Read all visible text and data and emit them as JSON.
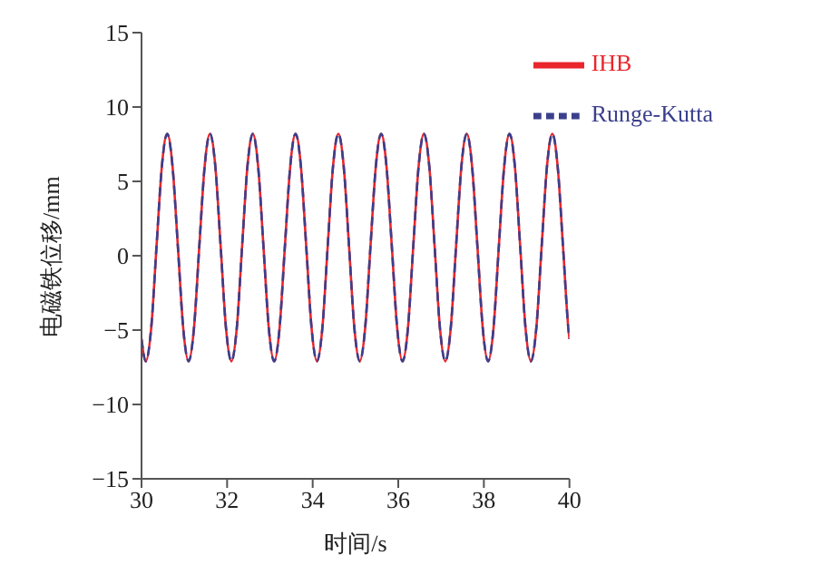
{
  "chart_data": {
    "type": "line",
    "xlabel": "时间/s",
    "ylabel": "电磁铁位移/mm",
    "x": [
      30,
      30.1,
      30.225,
      30.35,
      30.475,
      30.6,
      30.725,
      30.85,
      30.975,
      31.1,
      31.225,
      31.35,
      31.475,
      31.6,
      31.725,
      31.85,
      31.975,
      32.1,
      32.225,
      32.35,
      32.475,
      32.6,
      32.725,
      32.85,
      32.975,
      33.1,
      33.225,
      33.35,
      33.475,
      33.6,
      33.725,
      33.85,
      33.975,
      34.1,
      34.225,
      34.35,
      34.475,
      34.6,
      34.725,
      34.85,
      34.975,
      35.1,
      35.225,
      35.35,
      35.475,
      35.6,
      35.725,
      35.85,
      35.975,
      36.1,
      36.225,
      36.35,
      36.475,
      36.6,
      36.725,
      36.85,
      36.975,
      37.1,
      37.225,
      37.35,
      37.475,
      37.6,
      37.725,
      37.85,
      37.975,
      38.1,
      38.225,
      38.35,
      38.475,
      38.6,
      38.725,
      38.85,
      38.975,
      39.1,
      39.225,
      39.35,
      39.475,
      39.6,
      39.725,
      39.85,
      39.975,
      40
    ],
    "series": [
      {
        "name": "IHB",
        "color": "#e8262c",
        "line_style": "solid",
        "values": [
          -5.6,
          -7.1,
          -4.9,
          0.6,
          6.0,
          8.2,
          6.0,
          0.6,
          -4.9,
          -7.1,
          -4.9,
          0.6,
          6.0,
          8.2,
          6.0,
          0.6,
          -4.9,
          -7.1,
          -4.9,
          0.6,
          6.0,
          8.2,
          6.0,
          0.6,
          -4.9,
          -7.1,
          -4.9,
          0.6,
          6.0,
          8.2,
          6.0,
          0.6,
          -4.9,
          -7.1,
          -4.9,
          0.6,
          6.0,
          8.2,
          6.0,
          0.6,
          -4.9,
          -7.1,
          -4.9,
          0.6,
          6.0,
          8.2,
          6.0,
          0.6,
          -4.9,
          -7.1,
          -4.9,
          0.6,
          6.0,
          8.2,
          6.0,
          0.6,
          -4.9,
          -7.1,
          -4.9,
          0.6,
          6.0,
          8.2,
          6.0,
          0.6,
          -4.9,
          -7.1,
          -4.9,
          0.6,
          6.0,
          8.2,
          6.0,
          0.6,
          -4.9,
          -7.1,
          -4.9,
          0.6,
          6.0,
          8.2,
          6.0,
          0.6,
          -4.9,
          -5.6
        ]
      },
      {
        "name": "Runge-Kutta",
        "color": "#3b3f8c",
        "line_style": "dashed",
        "values": [
          -5.6,
          -7.1,
          -4.9,
          0.6,
          6.0,
          8.2,
          6.0,
          0.6,
          -4.9,
          -7.1,
          -4.9,
          0.6,
          6.0,
          8.2,
          6.0,
          0.6,
          -4.9,
          -7.1,
          -4.9,
          0.6,
          6.0,
          8.2,
          6.0,
          0.6,
          -4.9,
          -7.1,
          -4.9,
          0.6,
          6.0,
          8.2,
          6.0,
          0.6,
          -4.9,
          -7.1,
          -4.9,
          0.6,
          6.0,
          8.2,
          6.0,
          0.6,
          -4.9,
          -7.1,
          -4.9,
          0.6,
          6.0,
          8.2,
          6.0,
          0.6,
          -4.9,
          -7.1,
          -4.9,
          0.6,
          6.0,
          8.2,
          6.0,
          0.6,
          -4.9,
          -7.1,
          -4.9,
          0.6,
          6.0,
          8.2,
          6.0,
          0.6,
          -4.9,
          -7.1,
          -4.9,
          0.6,
          6.0,
          8.2,
          6.0,
          0.6,
          -4.9,
          -7.1,
          -4.9,
          0.6,
          6.0,
          8.2,
          6.0,
          0.6,
          -4.9,
          -5.6
        ]
      }
    ],
    "xlim": [
      30,
      40
    ],
    "xticks": [
      30,
      32,
      34,
      36,
      38,
      40
    ],
    "ylim": [
      -15,
      15
    ],
    "yticks": [
      -15,
      -10,
      -5,
      0,
      5,
      10,
      15
    ],
    "grid": false,
    "legend": "top right",
    "marker": "none"
  }
}
